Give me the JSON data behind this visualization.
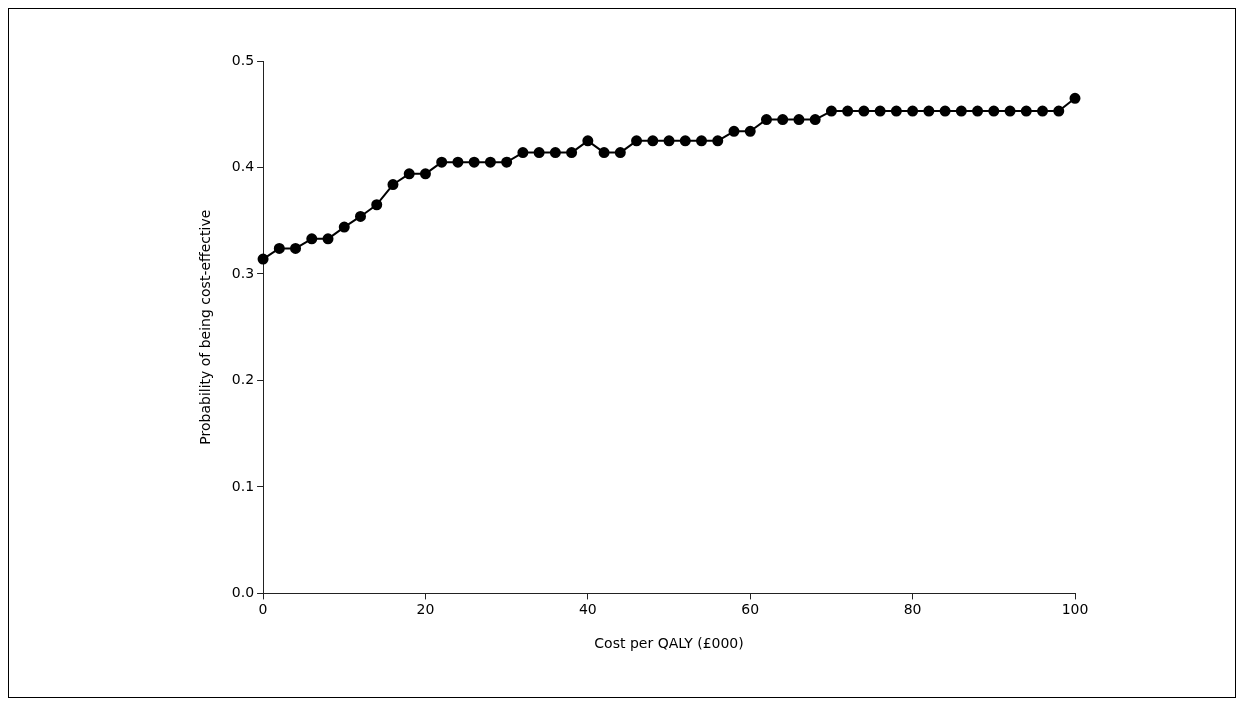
{
  "chart_data": {
    "type": "line",
    "xlabel": "Cost per QALY (£000)",
    "ylabel": "Probability of being cost-effective",
    "x": [
      0,
      2,
      4,
      6,
      8,
      10,
      12,
      14,
      16,
      18,
      20,
      22,
      24,
      26,
      28,
      30,
      32,
      34,
      36,
      38,
      40,
      42,
      44,
      46,
      48,
      50,
      52,
      54,
      56,
      58,
      60,
      62,
      64,
      66,
      68,
      70,
      72,
      74,
      76,
      78,
      80,
      82,
      84,
      86,
      88,
      90,
      92,
      94,
      96,
      98,
      100
    ],
    "values": [
      0.314,
      0.324,
      0.324,
      0.333,
      0.333,
      0.344,
      0.354,
      0.365,
      0.384,
      0.394,
      0.394,
      0.405,
      0.405,
      0.405,
      0.405,
      0.405,
      0.414,
      0.414,
      0.414,
      0.414,
      0.425,
      0.414,
      0.414,
      0.425,
      0.425,
      0.425,
      0.425,
      0.425,
      0.425,
      0.434,
      0.434,
      0.445,
      0.445,
      0.445,
      0.445,
      0.453,
      0.453,
      0.453,
      0.453,
      0.453,
      0.453,
      0.453,
      0.453,
      0.453,
      0.453,
      0.453,
      0.453,
      0.453,
      0.453,
      0.453,
      0.465
    ],
    "color": "#000000",
    "marker": "circle",
    "line_style": "solid",
    "xlim": [
      0,
      100
    ],
    "xticks": [
      0,
      20,
      40,
      60,
      80,
      100
    ],
    "ylim": [
      0,
      0.5
    ],
    "yticks": [
      {
        "value": 0,
        "label": "0.0"
      },
      0.1,
      0.2,
      0.3,
      0.4,
      0.5
    ],
    "grid": false,
    "legend": false
  }
}
